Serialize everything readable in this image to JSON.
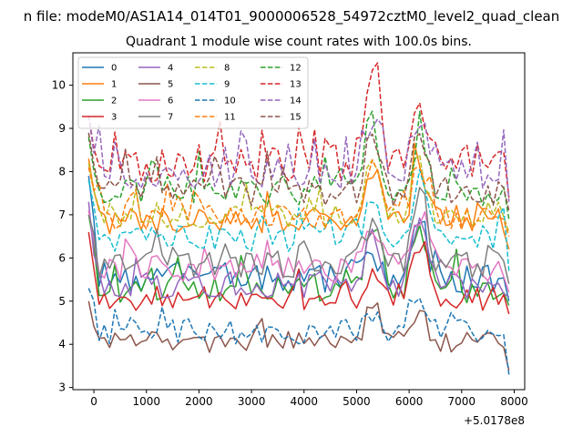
{
  "chart_data": {
    "type": "line",
    "suptitle": "n file: modeM0/AS1A14_014T01_9000006528_54972cztM0_level2_quad_clean",
    "title": "Quadrant 1 module wise count rates with 100.0s bins.",
    "xlabel": "",
    "ylabel": "",
    "x_offset_label": "+5.0178e8",
    "xlim": [
      -400,
      8200
    ],
    "ylim": [
      2.95,
      10.75
    ],
    "x_ticks": [
      0,
      1000,
      2000,
      3000,
      4000,
      5000,
      6000,
      7000,
      8000
    ],
    "x_tick_labels": [
      "0",
      "1000",
      "2000",
      "3000",
      "4000",
      "5000",
      "6000",
      "7000",
      "8000"
    ],
    "y_ticks": [
      3,
      4,
      5,
      6,
      7,
      8,
      9,
      10
    ],
    "y_tick_labels": [
      "3",
      "4",
      "5",
      "6",
      "7",
      "8",
      "9",
      "10"
    ],
    "grid": false,
    "legend_position": "top-left",
    "legend_columns": 4,
    "x_start": -100,
    "x_step": 100,
    "n_points": 81,
    "series": [
      {
        "name": "0",
        "color": "#1f77b4",
        "dashed": false,
        "base": 5.55,
        "amp": 0.35,
        "spike": 0.2,
        "start_level": 7.9,
        "end_level": 5.0,
        "events": [
          [
            5300,
            0.6
          ],
          [
            6200,
            1.5
          ]
        ],
        "seed": 11
      },
      {
        "name": "1",
        "color": "#ff7f0e",
        "dashed": false,
        "base": 6.85,
        "amp": 0.3,
        "spike": 0.2,
        "start_level": 8.3,
        "end_level": 6.2,
        "events": [
          [
            5300,
            1.4
          ],
          [
            6200,
            1.5
          ]
        ],
        "seed": 12
      },
      {
        "name": "2",
        "color": "#2ca02c",
        "dashed": false,
        "base": 5.3,
        "amp": 0.35,
        "spike": 0.2,
        "start_level": 7.0,
        "end_level": 4.9,
        "events": [
          [
            5300,
            1.3
          ],
          [
            6200,
            1.6
          ]
        ],
        "seed": 13
      },
      {
        "name": "3",
        "color": "#d62728",
        "dashed": false,
        "base": 5.05,
        "amp": 0.3,
        "spike": 0.15,
        "start_level": 6.6,
        "end_level": 4.7,
        "events": [
          [
            5300,
            0.8
          ],
          [
            6200,
            1.4
          ]
        ],
        "seed": 14
      },
      {
        "name": "4",
        "color": "#9467bd",
        "dashed": false,
        "base": 5.35,
        "amp": 0.3,
        "spike": 0.2,
        "start_level": 7.3,
        "end_level": 5.1,
        "events": [
          [
            5300,
            1.2
          ],
          [
            6200,
            1.8
          ]
        ],
        "seed": 15
      },
      {
        "name": "5",
        "color": "#8c564b",
        "dashed": false,
        "base": 4.05,
        "amp": 0.25,
        "spike": 0.15,
        "start_level": 5.0,
        "end_level": 3.4,
        "events": [
          [
            5300,
            0.9
          ],
          [
            6200,
            0.6
          ]
        ],
        "seed": 16
      },
      {
        "name": "6",
        "color": "#e377c2",
        "dashed": false,
        "base": 5.75,
        "amp": 0.35,
        "spike": 0.2,
        "start_level": 7.1,
        "end_level": 5.2,
        "events": [
          [
            5300,
            0.9
          ],
          [
            6200,
            1.4
          ]
        ],
        "seed": 17
      },
      {
        "name": "7",
        "color": "#7f7f7f",
        "dashed": false,
        "base": 5.85,
        "amp": 0.35,
        "spike": 0.2,
        "start_level": 7.0,
        "end_level": 5.4,
        "events": [
          [
            5300,
            1.0
          ],
          [
            6200,
            1.7
          ]
        ],
        "seed": 18
      },
      {
        "name": "8",
        "color": "#bcbd22",
        "dashed": true,
        "base": 7.0,
        "amp": 0.3,
        "spike": 0.2,
        "start_level": 8.2,
        "end_level": 6.6,
        "events": [
          [
            5300,
            1.3
          ],
          [
            6200,
            1.3
          ]
        ],
        "seed": 19
      },
      {
        "name": "9",
        "color": "#17becf",
        "dashed": true,
        "base": 6.45,
        "amp": 0.3,
        "spike": 0.2,
        "start_level": 7.8,
        "end_level": 5.7,
        "events": [
          [
            5300,
            1.1
          ],
          [
            6200,
            1.4
          ]
        ],
        "seed": 20
      },
      {
        "name": "10",
        "color": "#1f77b4",
        "dashed": true,
        "base": 4.3,
        "amp": 0.3,
        "spike": 0.15,
        "start_level": 5.3,
        "end_level": 3.3,
        "events": [
          [
            5300,
            0.3
          ],
          [
            6200,
            0.6
          ]
        ],
        "seed": 21
      },
      {
        "name": "11",
        "color": "#ff7f0e",
        "dashed": true,
        "base": 6.95,
        "amp": 0.3,
        "spike": 0.2,
        "start_level": 8.1,
        "end_level": 6.5,
        "events": [
          [
            5300,
            1.2
          ],
          [
            6200,
            1.3
          ]
        ],
        "seed": 22
      },
      {
        "name": "12",
        "color": "#2ca02c",
        "dashed": true,
        "base": 7.55,
        "amp": 0.35,
        "spike": 0.3,
        "start_level": 8.8,
        "end_level": 6.9,
        "events": [
          [
            5300,
            1.8
          ],
          [
            6200,
            1.3
          ]
        ],
        "seed": 23
      },
      {
        "name": "13",
        "color": "#d62728",
        "dashed": true,
        "base": 8.2,
        "amp": 0.45,
        "spike": 0.35,
        "start_level": 9.3,
        "end_level": 7.4,
        "events": [
          [
            5300,
            2.0
          ],
          [
            6200,
            1.2
          ]
        ],
        "seed": 24
      },
      {
        "name": "14",
        "color": "#9467bd",
        "dashed": true,
        "base": 7.95,
        "amp": 0.35,
        "spike": 0.3,
        "start_level": 9.3,
        "end_level": 7.3,
        "events": [
          [
            5300,
            1.3
          ],
          [
            6200,
            1.2
          ]
        ],
        "seed": 25
      },
      {
        "name": "15",
        "color": "#8c564b",
        "dashed": true,
        "base": 7.55,
        "amp": 0.35,
        "spike": 0.3,
        "start_level": 8.9,
        "end_level": 7.1,
        "events": [
          [
            5300,
            1.4
          ],
          [
            6200,
            1.4
          ]
        ],
        "seed": 26
      }
    ]
  }
}
